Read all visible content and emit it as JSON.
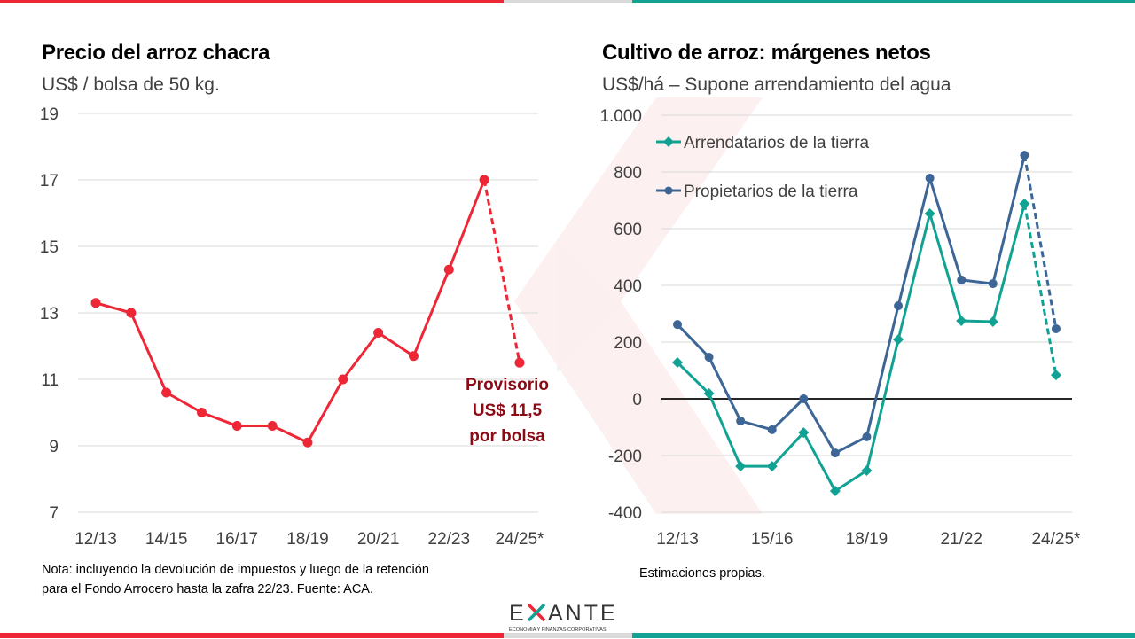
{
  "brand": {
    "name": "EXANTE",
    "tagline": "ECONOMÍA Y FINANZAS CORPORATIVAS",
    "colors": {
      "red": "#ee2737",
      "teal": "#12a294",
      "grey": "#d9d9d9",
      "dark_red": "#8b0a16",
      "navy": "#3d6696"
    }
  },
  "left": {
    "title": "Precio del arroz chacra",
    "subtitle": "US$ / bolsa de 50 kg.",
    "annotation": [
      "Provisorio",
      "US$ 11,5",
      "por bolsa"
    ],
    "note": [
      "Nota: incluyendo la devolución de impuestos y luego de la retención",
      "para el Fondo Arrocero hasta la zafra 22/23. Fuente: ACA."
    ]
  },
  "right": {
    "title": "Cultivo de arroz: márgenes netos",
    "subtitle": "US$/há – Supone arrendamiento del agua",
    "note": "Estimaciones propias."
  },
  "chart_data": [
    {
      "type": "line",
      "title": "Precio del arroz chacra",
      "ylabel": "US$ / bolsa de 50 kg.",
      "xlabel": "",
      "categories": [
        "12/13",
        "13/14",
        "14/15",
        "15/16",
        "16/17",
        "17/18",
        "18/19",
        "19/20",
        "20/21",
        "21/22",
        "22/23",
        "23/24",
        "24/25*"
      ],
      "x_tick_labels": [
        "12/13",
        "14/15",
        "16/17",
        "18/19",
        "20/21",
        "22/23",
        "24/25*"
      ],
      "y_ticks": [
        "19",
        "17",
        "15",
        "13",
        "11",
        "9",
        "7"
      ],
      "y_tick_values": [
        19,
        17,
        15,
        13,
        11,
        9,
        7
      ],
      "ylim": [
        7,
        19
      ],
      "grid": true,
      "legend": "none",
      "series": [
        {
          "name": "Precio",
          "color": "#ee2737",
          "marker": "circle",
          "values": [
            13.3,
            13.0,
            10.6,
            10.0,
            9.6,
            9.6,
            9.1,
            11.0,
            12.4,
            11.7,
            14.3,
            17.0,
            11.5
          ],
          "dashed_from_index": 11
        }
      ],
      "annotations": [
        "Provisorio US$ 11,5 por bolsa"
      ]
    },
    {
      "type": "line",
      "title": "Cultivo de arroz: márgenes netos",
      "ylabel": "US$/há – Supone arrendamiento del agua",
      "xlabel": "",
      "categories": [
        "12/13",
        "13/14",
        "14/15",
        "15/16",
        "16/17",
        "17/18",
        "18/19",
        "19/20",
        "20/21",
        "21/22",
        "22/23",
        "23/24",
        "24/25*"
      ],
      "x_tick_labels": [
        "12/13",
        "15/16",
        "18/19",
        "21/22",
        "24/25*"
      ],
      "y_ticks": [
        "1.000",
        "800",
        "600",
        "400",
        "200",
        "0",
        "-200",
        "-400"
      ],
      "y_tick_values": [
        1000,
        800,
        600,
        400,
        200,
        0,
        -200,
        -400
      ],
      "ylim": [
        -400,
        1000
      ],
      "grid": true,
      "legend": "top-left",
      "series": [
        {
          "name": "Arrendatarios de la tierra",
          "color": "#12a294",
          "marker": "diamond",
          "values": [
            128,
            19,
            -238,
            -238,
            -119,
            -325,
            -253,
            209,
            653,
            275,
            272,
            688,
            84
          ],
          "dashed_from_index": 11
        },
        {
          "name": "Propietarios de la tierra",
          "color": "#3d6696",
          "marker": "circle",
          "values": [
            262,
            147,
            -78,
            -109,
            0,
            -191,
            -134,
            328,
            778,
            419,
            406,
            859,
            247
          ],
          "dashed_from_index": 11
        }
      ]
    }
  ]
}
